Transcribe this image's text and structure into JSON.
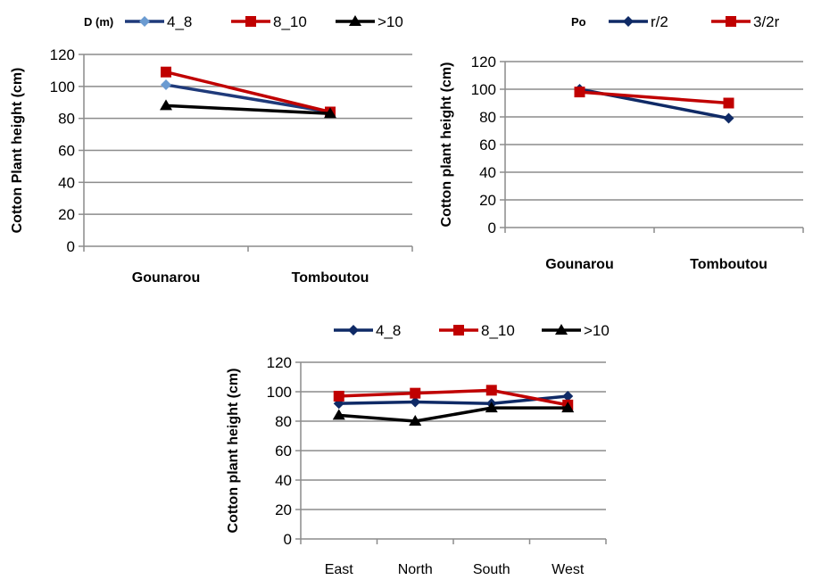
{
  "chart_data": [
    {
      "type": "line",
      "legend_title": "D (m)",
      "legend_position": "top",
      "ylabel": "Cotton Plant height (cm)",
      "xlabel": "",
      "ylim": [
        0,
        120
      ],
      "yticks": [
        0,
        20,
        40,
        60,
        80,
        100,
        120
      ],
      "categories": [
        "Gounarou",
        "Tomboutou"
      ],
      "category_bold": true,
      "grid": true,
      "series": [
        {
          "name": "4_8",
          "values": [
            101,
            84
          ],
          "color": "#1f3a7a",
          "marker_color": "#6b9bd1",
          "marker": "diamond"
        },
        {
          "name": "8_10",
          "values": [
            109,
            84
          ],
          "color": "#c00000",
          "marker": "square"
        },
        {
          "name": ">10",
          "values": [
            88,
            83
          ],
          "color": "#000000",
          "marker": "triangle"
        }
      ]
    },
    {
      "type": "line",
      "legend_title": "Po",
      "legend_position": "top",
      "ylabel": "Cotton plant height (cm)",
      "xlabel": "",
      "ylim": [
        0,
        120
      ],
      "yticks": [
        0,
        20,
        40,
        60,
        80,
        100,
        120
      ],
      "categories": [
        "Gounarou",
        "Tomboutou"
      ],
      "category_bold": true,
      "grid": true,
      "series": [
        {
          "name": "r/2",
          "values": [
            100,
            79
          ],
          "color": "#0f2a66",
          "marker": "diamond"
        },
        {
          "name": "3/2r",
          "values": [
            98,
            90
          ],
          "color": "#c00000",
          "marker": "square"
        }
      ]
    },
    {
      "type": "line",
      "legend_title": "",
      "legend_position": "top",
      "ylabel": "Cotton plant height (cm)",
      "xlabel": "",
      "ylim": [
        0,
        120
      ],
      "yticks": [
        0,
        20,
        40,
        60,
        80,
        100,
        120
      ],
      "categories": [
        "East",
        "North",
        "South",
        "West"
      ],
      "category_bold": false,
      "grid": true,
      "series": [
        {
          "name": "4_8",
          "values": [
            92,
            93,
            92,
            97
          ],
          "color": "#0f2a66",
          "marker": "diamond"
        },
        {
          "name": "8_10",
          "values": [
            97,
            99,
            101,
            91
          ],
          "color": "#c00000",
          "marker": "square"
        },
        {
          "name": ">10",
          "values": [
            84,
            80,
            89,
            89
          ],
          "color": "#000000",
          "marker": "triangle"
        }
      ]
    }
  ]
}
